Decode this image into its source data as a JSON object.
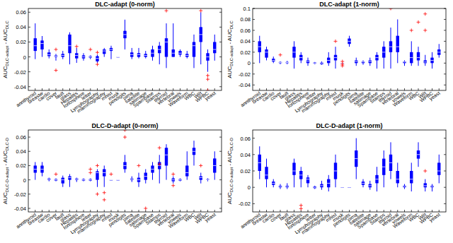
{
  "chart_data": [
    {
      "type": "box",
      "title": "DLC-adapt (0-norm)",
      "y_label": [
        "AUC",
        "DLC-adapt",
        " - AUC",
        "DLC"
      ],
      "color": "#0000ff",
      "categories": [
        "annthyroid",
        "breastw",
        "cardio",
        "cover",
        "fault",
        "glass",
        "Hepatitis",
        "Ionosphere",
        "letter",
        "Lymphography",
        "mammography",
        "mnist",
        "musk",
        "pendigits",
        "pima",
        "satellite",
        "satimage",
        "Spambase",
        "Stamps",
        "thyroid",
        "vertebral",
        "vowels",
        "Waveform",
        "WBC",
        "Wilt",
        "WPBC",
        "yeast"
      ],
      "ylim": [
        -0.045,
        0.065
      ],
      "yticks": [
        -0.04,
        -0.02,
        0,
        0.02,
        0.04,
        0.06
      ],
      "stats": [
        [
          -0.003,
          0.008,
          0.015,
          0.025,
          0.045
        ],
        [
          0,
          0.01,
          0.018,
          0.022,
          0.028
        ],
        [
          -0.002,
          0.001,
          0.003,
          0.006,
          0.01
        ],
        [
          -0.005,
          0,
          0.001,
          0.002,
          0.004
        ],
        [
          -0.003,
          0,
          0.002,
          0.004,
          0.008
        ],
        [
          -0.01,
          0.005,
          0.015,
          0.03,
          0.033
        ],
        [
          -0.008,
          -0.002,
          0.002,
          0.005,
          0.012
        ],
        [
          -0.005,
          -0.002,
          0,
          0.002,
          0.005
        ],
        [
          -0.003,
          -0.001,
          0,
          0.001,
          0.002
        ],
        [
          -0.008,
          -0.006,
          -0.002,
          0.001,
          0.003
        ],
        [
          0,
          0.004,
          0.008,
          0.01,
          0.012
        ],
        [
          -0.003,
          0.008,
          0.01,
          0.012,
          0.015
        ],
        [
          0,
          0,
          0,
          0,
          0
        ],
        [
          0.01,
          0.025,
          0.03,
          0.035,
          0.05
        ],
        [
          -0.003,
          0,
          0.003,
          0.006,
          0.012
        ],
        [
          -0.002,
          0,
          0.003,
          0.005,
          0.012
        ],
        [
          -0.002,
          0,
          0.002,
          0.004,
          0.008
        ],
        [
          -0.005,
          0,
          0.005,
          0.01,
          0.015
        ],
        [
          -0.01,
          0.005,
          0.01,
          0.015,
          0.02
        ],
        [
          -0.015,
          0,
          0.02,
          0.025,
          0.045
        ],
        [
          0,
          0,
          0.005,
          0.01,
          0.045
        ],
        [
          0,
          0.003,
          0.005,
          0.008,
          0.01
        ],
        [
          -0.002,
          0,
          0.002,
          0.004,
          0.008
        ],
        [
          -0.015,
          0,
          0.015,
          0.02,
          0.03
        ],
        [
          -0.01,
          0.02,
          0.03,
          0.04,
          0.06
        ],
        [
          -0.02,
          -0.005,
          0,
          0.005,
          0.01
        ],
        [
          -0.005,
          0.005,
          0.01,
          0.02,
          0.03
        ]
      ],
      "outliers": [
        [],
        [],
        [],
        [
          -0.018,
          0.01
        ],
        [],
        [],
        [
          0.014
        ],
        [],
        [
          0.01
        ],
        [
          0.006,
          -0.01
        ],
        [],
        [],
        [],
        [],
        [],
        [],
        [],
        [],
        [],
        [
          0.062
        ],
        [],
        [],
        [],
        [],
        [
          0.062
        ],
        [
          -0.025,
          -0.03,
          -0.045
        ],
        []
      ]
    },
    {
      "type": "box",
      "title": "DLC-adapt (1-norm)",
      "y_label": [
        "AUC",
        "DLC-adapt",
        " - AUC",
        "DLC"
      ],
      "color": "#0000ff",
      "categories": [
        "annthyroid",
        "breastw",
        "cardio",
        "cover",
        "fault",
        "glass",
        "Hepatitis",
        "Ionosphere",
        "letter",
        "Lymphography",
        "mammography",
        "mnist",
        "musk",
        "pendigits",
        "pima",
        "satellite",
        "satimage",
        "Spambase",
        "Stamps",
        "thyroid",
        "vertebral",
        "vowels",
        "Waveform",
        "WBC",
        "Wilt",
        "WPBC",
        "yeast"
      ],
      "ylim": [
        -0.05,
        0.1
      ],
      "yticks": [
        -0.04,
        -0.02,
        0,
        0.02,
        0.04,
        0.06,
        0.08,
        0.1
      ],
      "stats": [
        [
          0,
          0.02,
          0.03,
          0.04,
          0.05
        ],
        [
          0.005,
          0.01,
          0.02,
          0.025,
          0.03
        ],
        [
          0,
          0.003,
          0.005,
          0.008,
          0.012
        ],
        [
          -0.002,
          0,
          0.001,
          0.002,
          0.003
        ],
        [
          -0.002,
          0,
          0.001,
          0.002,
          0.004
        ],
        [
          -0.01,
          0.01,
          0.02,
          0.03,
          0.04
        ],
        [
          0,
          0.005,
          0.01,
          0.015,
          0.02
        ],
        [
          -0.005,
          0,
          0.003,
          0.005,
          0.01
        ],
        [
          -0.002,
          -0.001,
          0,
          0.001,
          0.002
        ],
        [
          -0.003,
          -0.002,
          0,
          0.001,
          0.003
        ],
        [
          -0.005,
          0,
          0.005,
          0.01,
          0.02
        ],
        [
          -0.01,
          0.005,
          0.01,
          0.015,
          0.03
        ],
        [
          0,
          0,
          0,
          0,
          0
        ],
        [
          0.03,
          0.035,
          0.04,
          0.045,
          0.05
        ],
        [
          -0.005,
          0,
          0.003,
          0.005,
          0.01
        ],
        [
          -0.003,
          0,
          0.002,
          0.003,
          0.005
        ],
        [
          -0.005,
          0,
          0.003,
          0.005,
          0.01
        ],
        [
          -0.01,
          0.005,
          0.01,
          0.015,
          0.02
        ],
        [
          -0.01,
          0.01,
          0.02,
          0.03,
          0.04
        ],
        [
          -0.01,
          0.02,
          0.03,
          0.04,
          0.065
        ],
        [
          0,
          0.02,
          0.03,
          0.05,
          0.08
        ],
        [
          -0.005,
          0,
          0.002,
          0.003,
          0.005
        ],
        [
          -0.005,
          0,
          0.01,
          0.02,
          0.04
        ],
        [
          -0.005,
          0.005,
          0.01,
          0.02,
          0.03
        ],
        [
          -0.005,
          0,
          0.002,
          0.005,
          0.015
        ],
        [
          -0.01,
          0,
          0.005,
          0.01,
          0.02
        ],
        [
          0.01,
          0.015,
          0.02,
          0.025,
          0.035
        ]
      ],
      "outliers": [
        [],
        [],
        [],
        [
          0.015
        ],
        [],
        [],
        [],
        [],
        [],
        [],
        [],
        [
          0.04
        ],
        [
          -0.002,
          -0.005,
          0.003
        ],
        [],
        [],
        [],
        [],
        [],
        [],
        [
          0.1
        ],
        [],
        [],
        [
          0.06
        ],
        [
          0.075
        ],
        [
          0.06,
          0.09
        ],
        [],
        []
      ]
    },
    {
      "type": "box",
      "title": "DLC-D-adapt (0-norm)",
      "y_label": [
        "AUC",
        "DLC-D-adapt",
        " - AUC",
        "DLC-D"
      ],
      "color": "#0000ff",
      "categories": [
        "annthyroid",
        "breastw",
        "cardio",
        "cover",
        "fault",
        "glass",
        "Hepatitis",
        "Ionosphere",
        "letter",
        "Lymphography",
        "mammography",
        "mnist",
        "musk",
        "pendigits",
        "pima",
        "satellite",
        "satimage",
        "Spambase",
        "Stamps",
        "thyroid",
        "vertebral",
        "vowels",
        "Waveform",
        "WBC",
        "Wilt",
        "WPBC",
        "yeast"
      ],
      "ylim": [
        -0.045,
        0.07
      ],
      "yticks": [
        -0.04,
        -0.02,
        0,
        0.02,
        0.04,
        0.06
      ],
      "stats": [
        [
          0,
          0.01,
          0.015,
          0.02,
          0.025
        ],
        [
          0.005,
          0.01,
          0.015,
          0.02,
          0.025
        ],
        [
          -0.002,
          0,
          0.001,
          0.002,
          0.003
        ],
        [
          -0.002,
          -0.001,
          0,
          0.001,
          0.002
        ],
        [
          -0.01,
          -0.005,
          0,
          0.003,
          0.006
        ],
        [
          -0.01,
          0,
          0.003,
          0.005,
          0.008
        ],
        [
          -0.003,
          0,
          0.001,
          0.002,
          0.003
        ],
        [
          -0.002,
          -0.001,
          0,
          0.001,
          0.002
        ],
        [
          -0.002,
          -0.001,
          0,
          0.001,
          0.002
        ],
        [
          -0.01,
          0,
          0.01,
          0.012,
          0.015
        ],
        [
          -0.01,
          0.005,
          0.01,
          0.015,
          0.02
        ],
        [
          0,
          0,
          0,
          0,
          0
        ],
        [
          0,
          0,
          0,
          0,
          0
        ],
        [
          0.01,
          0.015,
          0.02,
          0.025,
          0.035
        ],
        [
          -0.003,
          0,
          0.001,
          0.002,
          0.005
        ],
        [
          -0.01,
          -0.003,
          0,
          0.003,
          0.01
        ],
        [
          -0.005,
          0,
          0.005,
          0.01,
          0.015
        ],
        [
          0,
          0.01,
          0.015,
          0.02,
          0.025
        ],
        [
          -0.005,
          0.015,
          0.02,
          0.025,
          0.035
        ],
        [
          0,
          0.02,
          0.035,
          0.045,
          0.05
        ],
        [
          -0.005,
          -0.002,
          0,
          0.002,
          0.005
        ],
        [
          -0.002,
          -0.001,
          0,
          0.001,
          0.002
        ],
        [
          0,
          0.005,
          0.01,
          0.02,
          0.04
        ],
        [
          0.02,
          0.035,
          0.04,
          0.045,
          0.055
        ],
        [
          -0.005,
          0,
          0.003,
          0.005,
          0.01
        ],
        [
          -0.002,
          0,
          0,
          0.001,
          0.002
        ],
        [
          0,
          0.01,
          0.02,
          0.03,
          0.04
        ]
      ],
      "outliers": [
        [],
        [],
        [],
        [
          0.008
        ],
        [],
        [],
        [],
        [],
        [
          0.015,
          0.01
        ],
        [
          0.02,
          -0.02
        ],
        [
          -0.028,
          -0.018
        ],
        [
          0.008
        ],
        [],
        [
          0.06,
          0.07
        ],
        [],
        [
          0.02
        ],
        [
          -0.04
        ],
        [],
        [
          0.045,
          0.022
        ],
        [],
        [
          -0.008,
          0.008
        ],
        [],
        [],
        [],
        [
          0.02
        ],
        [],
        []
      ]
    },
    {
      "type": "box",
      "title": "DLC-D-adapt (1-norm)",
      "y_label": [
        "AUC",
        "DLC-D-adapt",
        " - AUC",
        "DLC-D"
      ],
      "color": "#0000ff",
      "categories": [
        "annthyroid",
        "breastw",
        "cardio",
        "cover",
        "fault",
        "glass",
        "Hepatitis",
        "Ionosphere",
        "letter",
        "Lymphography",
        "mammography",
        "mnist",
        "musk",
        "pendigits",
        "pima",
        "satellite",
        "satimage",
        "Spambase",
        "Stamps",
        "thyroid",
        "vertebral",
        "vowels",
        "Waveform",
        "WBC",
        "Wilt",
        "WPBC",
        "yeast"
      ],
      "ylim": [
        -0.03,
        0.07
      ],
      "yticks": [
        -0.02,
        0,
        0.02,
        0.04,
        0.06
      ],
      "stats": [
        [
          0.01,
          0.02,
          0.03,
          0.04,
          0.05
        ],
        [
          0,
          0.01,
          0.015,
          0.025,
          0.035
        ],
        [
          0,
          0.003,
          0.005,
          0.007,
          0.01
        ],
        [
          -0.002,
          0,
          0.001,
          0.002,
          0.004
        ],
        [
          -0.002,
          0,
          0.001,
          0.002,
          0.005
        ],
        [
          0,
          0.015,
          0.02,
          0.03,
          0.035
        ],
        [
          0,
          0.01,
          0.015,
          0.02,
          0.025
        ],
        [
          0,
          0.005,
          0.01,
          0.012,
          0.015
        ],
        [
          -0.002,
          -0.001,
          0,
          0.001,
          0.002
        ],
        [
          -0.003,
          0,
          0.002,
          0.004,
          0.008
        ],
        [
          -0.005,
          0,
          0.005,
          0.01,
          0.015
        ],
        [
          0,
          0.01,
          0.02,
          0.03,
          0.04
        ],
        [
          0,
          0,
          0,
          0,
          0
        ],
        [
          0,
          0,
          0,
          0,
          0
        ],
        [
          0.01,
          0.025,
          0.035,
          0.045,
          0.06
        ],
        [
          0,
          0.003,
          0.005,
          0.007,
          0.01
        ],
        [
          -0.003,
          0,
          0.002,
          0.004,
          0.008
        ],
        [
          -0.005,
          0.005,
          0.01,
          0.015,
          0.025
        ],
        [
          0,
          0.015,
          0.025,
          0.035,
          0.045
        ],
        [
          0.01,
          0.02,
          0.03,
          0.04,
          0.055
        ],
        [
          0,
          0.005,
          0.01,
          0.02,
          0.03
        ],
        [
          -0.002,
          0,
          0.001,
          0.002,
          0.004
        ],
        [
          -0.005,
          0.005,
          0.01,
          0.02,
          0.03
        ],
        [
          0.025,
          0.035,
          0.04,
          0.045,
          0.055
        ],
        [
          -0.005,
          0,
          0.002,
          0.005,
          0.01
        ],
        [
          -0.005,
          0,
          0.001,
          0.002,
          0.004
        ],
        [
          0.005,
          0.015,
          0.02,
          0.03,
          0.04
        ]
      ],
      "outliers": [
        [],
        [],
        [],
        [],
        [],
        [],
        [
          -0.022,
          -0.026
        ],
        [],
        [],
        [],
        [],
        [],
        [],
        [],
        [],
        [],
        [],
        [],
        [],
        [],
        [],
        [],
        [],
        [],
        [
          0.02
        ],
        [],
        []
      ]
    }
  ]
}
